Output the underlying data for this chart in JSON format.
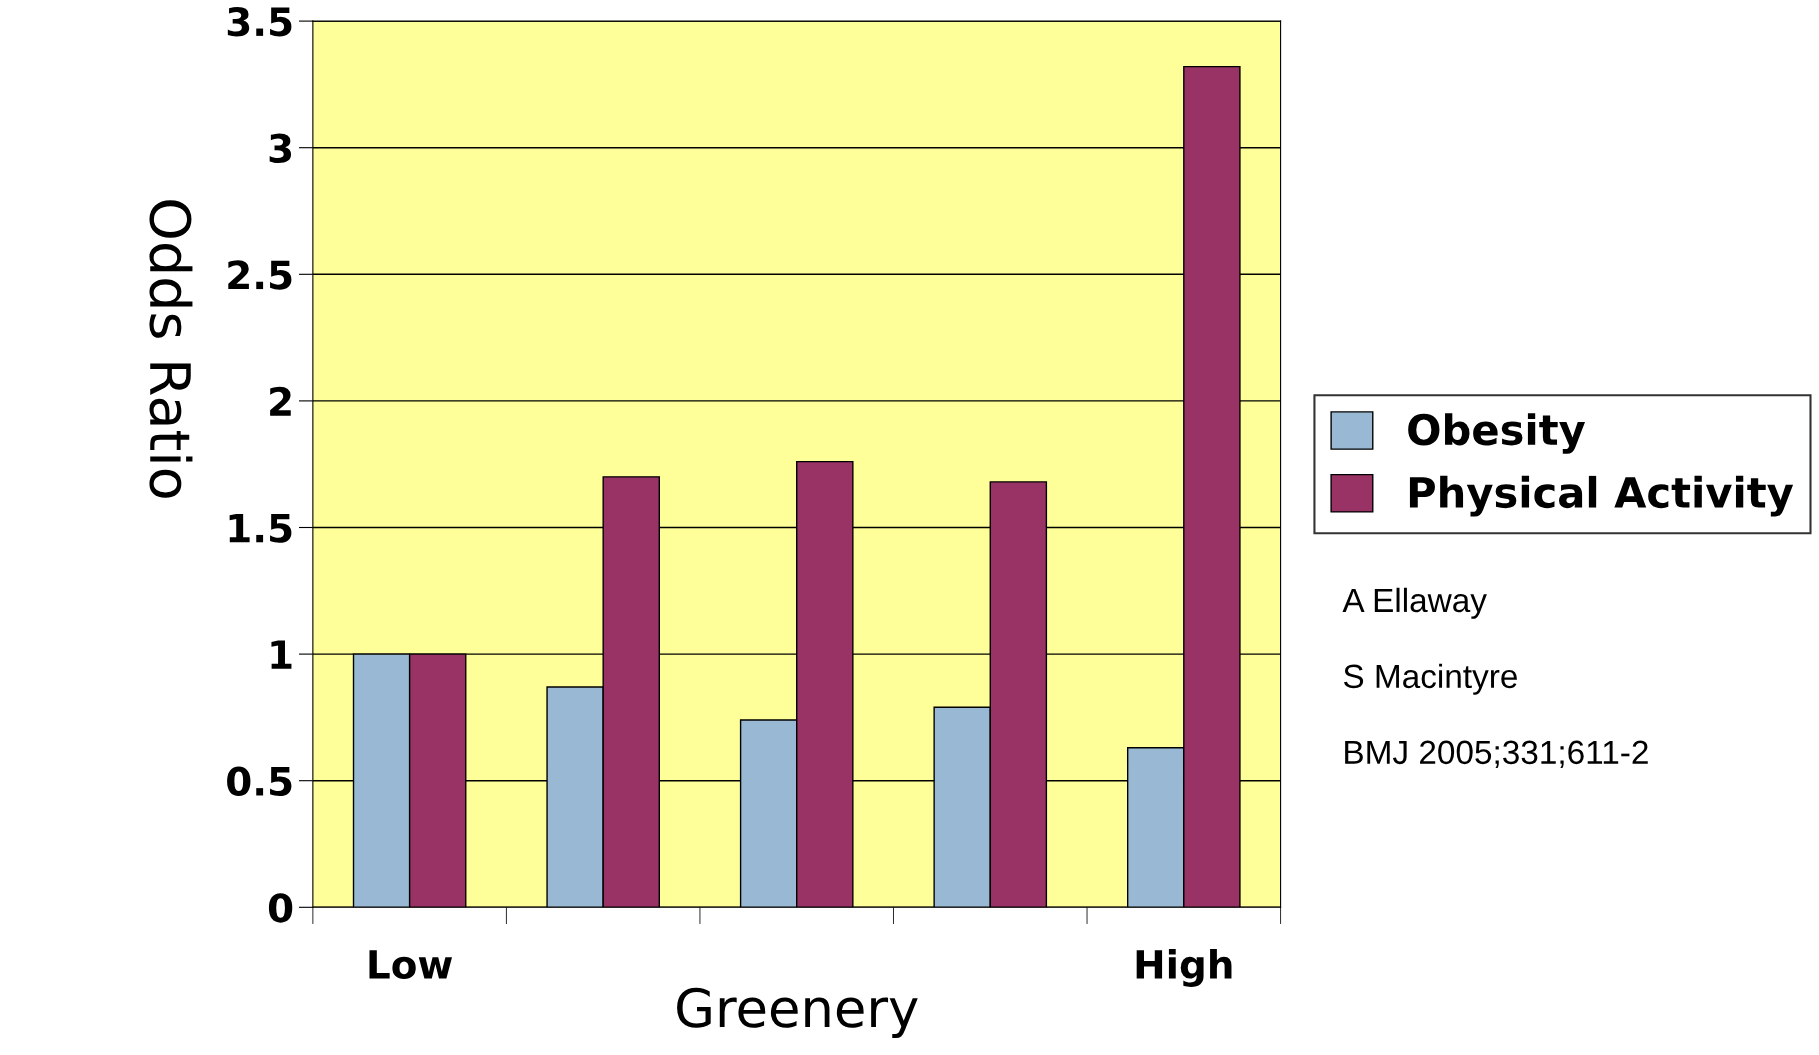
{
  "chart_data": {
    "type": "bar",
    "xlabel": "Greenery",
    "ylabel": "Odds Ratio",
    "categories": [
      "Low",
      null,
      null,
      null,
      "High"
    ],
    "series": [
      {
        "name": "Obesity",
        "color": "#99b8d3",
        "values": [
          1.0,
          0.87,
          0.74,
          0.79,
          0.63
        ]
      },
      {
        "name": "Physical Activity",
        "color": "#993366",
        "values": [
          1.0,
          1.7,
          1.76,
          1.68,
          3.32
        ]
      }
    ],
    "ylim": [
      0,
      3.5
    ],
    "yticks": [
      0,
      0.5,
      1,
      1.5,
      2,
      2.5,
      3,
      3.5
    ],
    "grid": "y",
    "legend": "right",
    "annotations": [
      "A Ellaway",
      "S Macintyre",
      "BMJ 2005;331;611-2"
    ]
  }
}
